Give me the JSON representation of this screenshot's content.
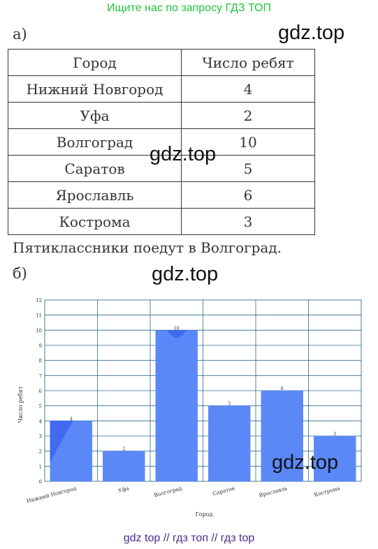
{
  "header": {
    "link_text": "Ищите нас по запросу ГДЗ ТОП"
  },
  "watermarks": [
    "gdz.top",
    "gdz.top",
    "gdz.top",
    "gdz.top"
  ],
  "part_a": {
    "label": "а)"
  },
  "table": {
    "headers": [
      "Город",
      "Число ребят"
    ],
    "rows": [
      [
        "Нижний Новгород",
        "4"
      ],
      [
        "Уфа",
        "2"
      ],
      [
        "Волгоград",
        "10"
      ],
      [
        "Саратов",
        "5"
      ],
      [
        "Ярославль",
        "6"
      ],
      [
        "Кострома",
        "3"
      ]
    ]
  },
  "conclusion": "Пятиклассники поедут в Волгоград.",
  "part_b": {
    "label": "б)"
  },
  "chart_data": {
    "type": "bar",
    "categories": [
      "Нижний Новгород",
      "Уфа",
      "Волгоград",
      "Саратов",
      "Ярославль",
      "Кострома"
    ],
    "values": [
      4,
      2,
      10,
      5,
      6,
      3
    ],
    "data_labels": [
      "4",
      "2",
      "10",
      "5",
      "6",
      "3"
    ],
    "title": "",
    "xlabel": "Город",
    "ylabel": "Число ребят",
    "ylim": [
      0,
      12
    ],
    "yticks": [
      "0",
      "1",
      "2",
      "3",
      "4",
      "5",
      "6",
      "7",
      "8",
      "9",
      "10",
      "11",
      "12"
    ],
    "grid": true,
    "legend": "none",
    "colors": {
      "bar": "#5b88f7",
      "bar_highlight": "#3b62ef",
      "grid": "#2b6a8f",
      "frame": "#9bbad0"
    }
  },
  "footer": {
    "text": "gdz top  //  гдз топ  //  гдз top"
  }
}
